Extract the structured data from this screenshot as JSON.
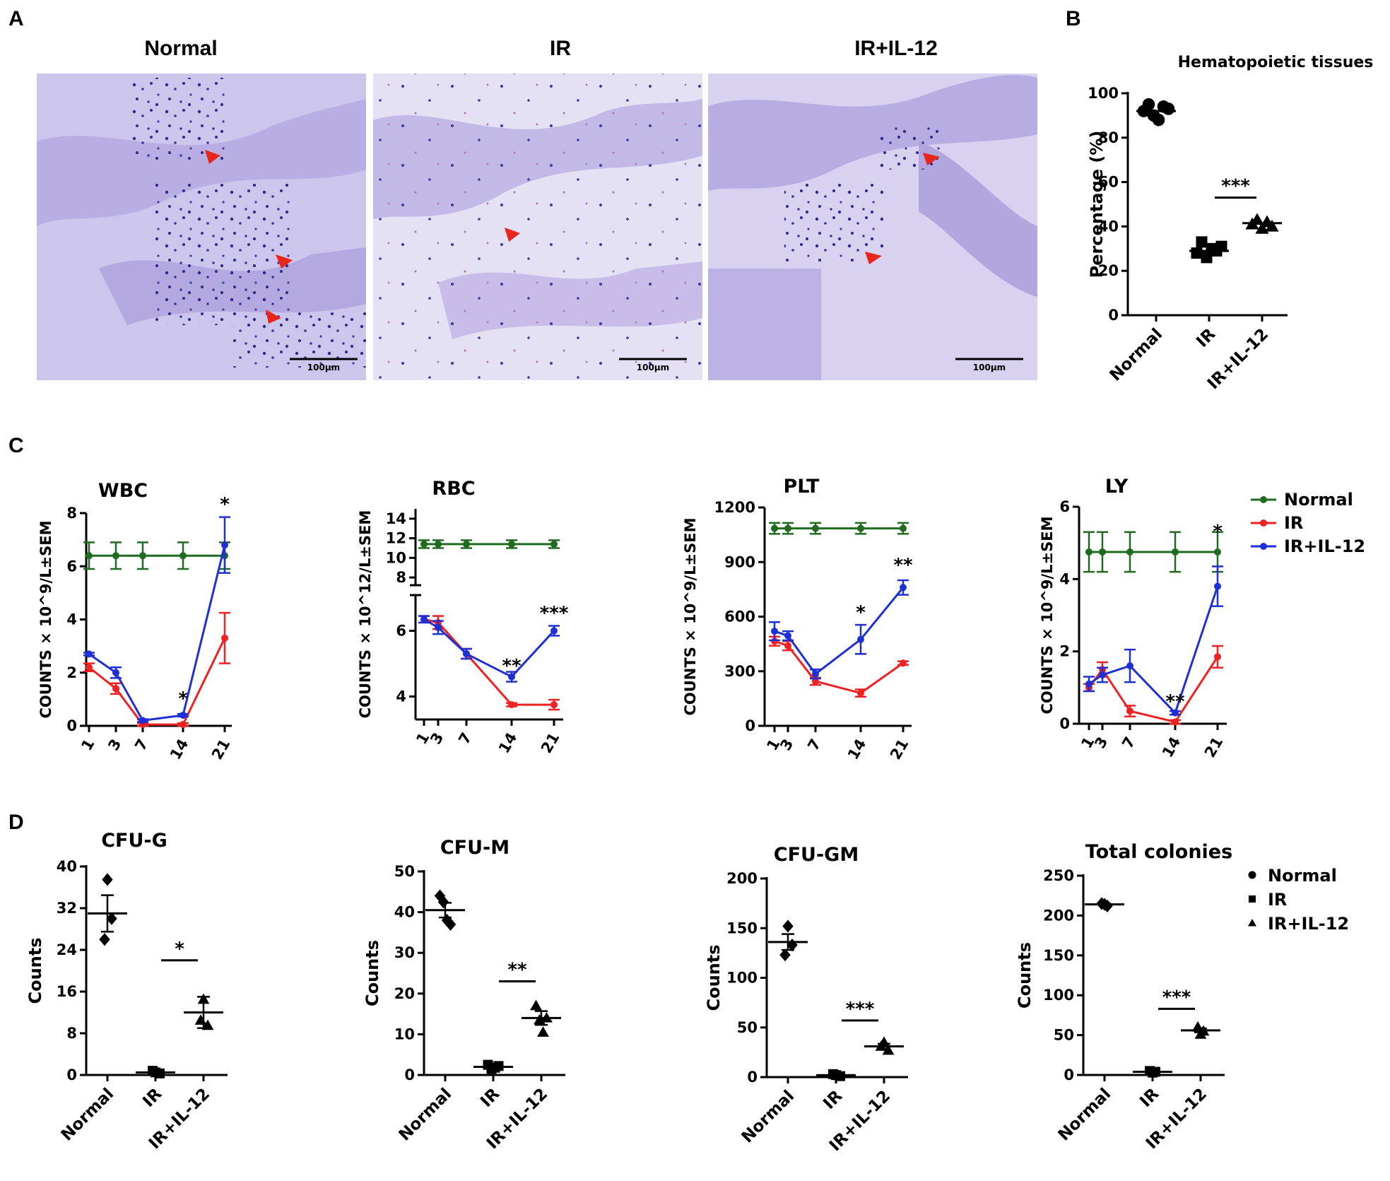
{
  "panel_letters": {
    "a": "A",
    "b": "B",
    "c": "C",
    "d": "D"
  },
  "histology": {
    "panels": [
      {
        "title": "Normal",
        "scale_bar": "100μm"
      },
      {
        "title": "IR",
        "scale_bar": "100μm"
      },
      {
        "title": "IR+IL-12",
        "scale_bar": "100μm"
      }
    ]
  },
  "colors": {
    "normal": "#1f6b1f",
    "ir": "#ee2222",
    "il12": "#1f2fd6",
    "stain_bg": "#c9c2ea",
    "stain_cell": "#2a2a8c",
    "arrow": "#e8261c"
  },
  "chart_data": [
    {
      "id": "B",
      "type": "scatter",
      "title": "Hematopoietic tissues",
      "ylabel": "Percentage (%)",
      "categories": [
        "Normal",
        "IR",
        "IR+IL-12"
      ],
      "ylim": [
        0,
        100
      ],
      "yticks": [
        "0",
        "20",
        "40",
        "60",
        "80",
        "100"
      ],
      "markers": [
        "circle",
        "square",
        "triangle"
      ],
      "points": [
        [
          92,
          95,
          90,
          88,
          94,
          93
        ],
        [
          28,
          33,
          26,
          30,
          29,
          31
        ],
        [
          41,
          43,
          39,
          42,
          40
        ]
      ],
      "means": [
        92,
        29,
        41.5
      ],
      "significance": [
        {
          "between": [
            1,
            2
          ],
          "y": 53,
          "label": "***"
        }
      ]
    },
    {
      "id": "C-WBC",
      "type": "line",
      "title": "WBC",
      "ylabel": "COUNTS × 10^9/L±SEM",
      "x": [
        1,
        3,
        7,
        14,
        21
      ],
      "xticks": [
        "1",
        "3",
        "7",
        "14",
        "21"
      ],
      "ylim": [
        0,
        8
      ],
      "yticks": [
        "0",
        "2",
        "4",
        "6",
        "8"
      ],
      "series": [
        {
          "name": "Normal",
          "values": [
            6.4,
            6.4,
            6.4,
            6.4,
            6.4
          ],
          "err": [
            0.5,
            0.5,
            0.5,
            0.5,
            0.5
          ]
        },
        {
          "name": "IR",
          "values": [
            2.2,
            1.4,
            0.05,
            0.05,
            3.3
          ],
          "err": [
            0.15,
            0.2,
            0.05,
            0.05,
            0.95
          ]
        },
        {
          "name": "IR+IL-12",
          "values": [
            2.7,
            2.0,
            0.2,
            0.4,
            6.8
          ],
          "err": [
            0.05,
            0.2,
            0.05,
            0.05,
            1.05
          ]
        }
      ],
      "annotations": [
        {
          "x": 14,
          "y": 0.8,
          "label": "*"
        },
        {
          "x": 21,
          "y": 8.1,
          "label": "*"
        }
      ]
    },
    {
      "id": "C-RBC",
      "type": "line",
      "title": "RBC",
      "ylabel": "COUNTS × 10^12/L±SEM",
      "x": [
        1,
        3,
        7,
        14,
        21
      ],
      "xticks": [
        "1",
        "3",
        "7",
        "14",
        "21"
      ],
      "ylim_lower": [
        3.3,
        7
      ],
      "ylim_upper": [
        7.5,
        15
      ],
      "yticks": [
        "4",
        "6",
        "8",
        "10",
        "12",
        "14"
      ],
      "series": [
        {
          "name": "Normal",
          "values": [
            11.4,
            11.4,
            11.4,
            11.4,
            11.4
          ],
          "err": [
            0.4,
            0.4,
            0.4,
            0.4,
            0.4
          ]
        },
        {
          "name": "IR",
          "values": [
            6.35,
            6.25,
            5.3,
            3.75,
            3.75
          ],
          "err": [
            0.1,
            0.2,
            0.15,
            0.05,
            0.15
          ]
        },
        {
          "name": "IR+IL-12",
          "values": [
            6.35,
            6.1,
            5.3,
            4.6,
            6.0
          ],
          "err": [
            0.1,
            0.2,
            0.15,
            0.15,
            0.15
          ]
        }
      ],
      "annotations": [
        {
          "x": 14,
          "y": 4.75,
          "label": "**"
        },
        {
          "x": 21,
          "y": 6.35,
          "label": "***"
        }
      ]
    },
    {
      "id": "C-PLT",
      "type": "line",
      "title": "PLT",
      "ylabel": "COUNTS × 10^9/L±SEM",
      "x": [
        1,
        3,
        7,
        14,
        21
      ],
      "xticks": [
        "1",
        "3",
        "7",
        "14",
        "21"
      ],
      "ylim": [
        0,
        1200
      ],
      "yticks": [
        "0",
        "300",
        "600",
        "900",
        "1200"
      ],
      "series": [
        {
          "name": "Normal",
          "values": [
            1085,
            1085,
            1085,
            1085,
            1085
          ],
          "err": [
            30,
            30,
            30,
            30,
            30
          ]
        },
        {
          "name": "IR",
          "values": [
            465,
            440,
            245,
            180,
            345
          ],
          "err": [
            25,
            25,
            20,
            20,
            10
          ]
        },
        {
          "name": "IR+IL-12",
          "values": [
            520,
            495,
            285,
            475,
            760
          ],
          "err": [
            50,
            25,
            25,
            80,
            40
          ]
        }
      ],
      "annotations": [
        {
          "x": 14,
          "y": 590,
          "label": "*"
        },
        {
          "x": 21,
          "y": 850,
          "label": "**"
        }
      ]
    },
    {
      "id": "C-LY",
      "type": "line",
      "title": "LY",
      "ylabel": "COUNTS × 10^9/L±SEM",
      "x": [
        1,
        3,
        7,
        14,
        21
      ],
      "xticks": [
        "1",
        "3",
        "7",
        "14",
        "21"
      ],
      "ylim": [
        0,
        6
      ],
      "yticks": [
        "0",
        "2",
        "4",
        "6"
      ],
      "series": [
        {
          "name": "Normal",
          "values": [
            4.75,
            4.75,
            4.75,
            4.75,
            4.75
          ],
          "err": [
            0.55,
            0.55,
            0.55,
            0.55,
            0.55
          ]
        },
        {
          "name": "IR",
          "values": [
            1.0,
            1.5,
            0.35,
            0.05,
            1.85
          ],
          "err": [
            0.1,
            0.2,
            0.15,
            0.05,
            0.3
          ]
        },
        {
          "name": "IR+IL-12",
          "values": [
            1.1,
            1.35,
            1.6,
            0.3,
            3.8
          ],
          "err": [
            0.2,
            0.2,
            0.45,
            0.05,
            0.55
          ]
        }
      ],
      "annotations": [
        {
          "x": 14,
          "y": 0.45,
          "label": "**"
        },
        {
          "x": 21,
          "y": 5.15,
          "label": "*"
        }
      ],
      "legend": {
        "position": "right",
        "entries": [
          "Normal",
          "IR",
          "IR+IL-12"
        ]
      }
    },
    {
      "id": "D-CFU-G",
      "type": "scatter",
      "title": "CFU-G",
      "ylabel": "Counts",
      "categories": [
        "Normal",
        "IR",
        "IR+IL-12"
      ],
      "ylim": [
        0,
        40
      ],
      "yticks": [
        "0",
        "8",
        "16",
        "24",
        "32",
        "40"
      ],
      "points": [
        [
          37.5,
          30,
          26
        ],
        [
          0.5,
          0.3,
          0.8
        ],
        [
          14.5,
          9.5,
          10.5
        ]
      ],
      "means": [
        31,
        0.5,
        12
      ],
      "sem": [
        3.5,
        0.3,
        3
      ],
      "significance": [
        {
          "between": [
            1,
            2
          ],
          "y": 22,
          "label": "*"
        }
      ]
    },
    {
      "id": "D-CFU-M",
      "type": "scatter",
      "title": "CFU-M",
      "ylabel": "Counts",
      "categories": [
        "Normal",
        "IR",
        "IR+IL-12"
      ],
      "ylim": [
        0,
        50
      ],
      "yticks": [
        "0",
        "10",
        "20",
        "30",
        "40",
        "50"
      ],
      "points": [
        [
          44,
          42.5,
          38,
          37
        ],
        [
          2.5,
          1.5,
          1.8,
          2.2
        ],
        [
          17,
          13.5,
          10.5,
          14
        ]
      ],
      "means": [
        40.5,
        2,
        14
      ],
      "sem": [
        1.8,
        0.5,
        1.7
      ],
      "significance": [
        {
          "between": [
            1,
            2
          ],
          "y": 23,
          "label": "**"
        }
      ]
    },
    {
      "id": "D-CFU-GM",
      "type": "scatter",
      "title": "CFU-GM",
      "ylabel": "Counts",
      "categories": [
        "Normal",
        "IR",
        "IR+IL-12"
      ],
      "ylim": [
        0,
        200
      ],
      "yticks": [
        "0",
        "50",
        "100",
        "150",
        "200"
      ],
      "points": [
        [
          152,
          133,
          123
        ],
        [
          2,
          1,
          3
        ],
        [
          35,
          27,
          31
        ]
      ],
      "means": [
        136,
        2,
        31
      ],
      "sem": [
        8,
        1,
        2.5
      ],
      "significance": [
        {
          "between": [
            1,
            2
          ],
          "y": 57,
          "label": "***"
        }
      ]
    },
    {
      "id": "D-Total",
      "type": "scatter",
      "title": "Total colonies",
      "ylabel": "Counts",
      "categories": [
        "Normal",
        "IR",
        "IR+IL-12"
      ],
      "ylim": [
        0,
        250
      ],
      "yticks": [
        "0",
        "50",
        "100",
        "150",
        "200",
        "250"
      ],
      "points": [
        [
          215,
          214,
          212
        ],
        [
          5,
          3,
          4
        ],
        [
          60,
          51,
          55
        ]
      ],
      "means": [
        214,
        4,
        56
      ],
      "sem": [
        1,
        0.5,
        2.5
      ],
      "significance": [
        {
          "between": [
            1,
            2
          ],
          "y": 83,
          "label": "***"
        }
      ],
      "legend": {
        "position": "right",
        "entries": [
          "Normal",
          "IR",
          "IR+IL-12"
        ]
      }
    }
  ]
}
